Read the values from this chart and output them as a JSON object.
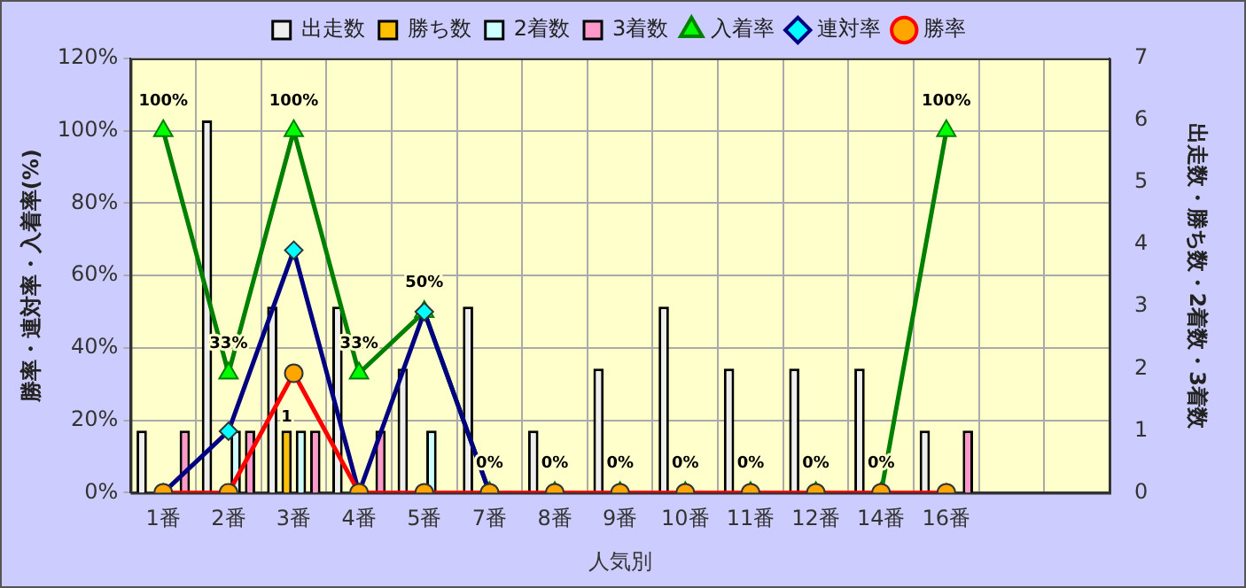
{
  "chart_data": {
    "type": "bar",
    "xlabel": "人気別",
    "ylabel": "勝率・連対率・入着率(%)",
    "y2label": "出走数・勝ち数・2着数・3着数",
    "categories": [
      "1番",
      "2番",
      "3番",
      "4番",
      "5番",
      "7番",
      "8番",
      "9番",
      "10番",
      "11番",
      "12番",
      "14番",
      "16番",
      null,
      null
    ],
    "series": [
      {
        "name": "出走数",
        "axis": "y2",
        "color": "#eeeeee",
        "values": [
          1,
          6,
          3,
          3,
          2,
          3,
          1,
          2,
          3,
          2,
          2,
          2,
          1,
          null,
          null
        ]
      },
      {
        "name": "勝ち数",
        "axis": "y2",
        "color": "#ffc000",
        "values": [
          0,
          0,
          1,
          0,
          0,
          0,
          0,
          0,
          0,
          0,
          0,
          0,
          0,
          null,
          null
        ],
        "value_labels": [
          null,
          null,
          "1",
          null,
          null,
          null,
          null,
          null,
          null,
          null,
          null,
          null,
          null,
          null,
          null
        ]
      },
      {
        "name": "2着数",
        "axis": "y2",
        "color": "#ccffff",
        "values": [
          0,
          1,
          1,
          0,
          1,
          0,
          0,
          0,
          0,
          0,
          0,
          0,
          0,
          null,
          null
        ]
      },
      {
        "name": "3着数",
        "axis": "y2",
        "color": "#ff99cc",
        "values": [
          1,
          1,
          1,
          1,
          0,
          0,
          0,
          0,
          0,
          0,
          0,
          0,
          1,
          null,
          null
        ]
      },
      {
        "name": "入着率",
        "type": "line",
        "marker": "triangle",
        "color": "#008000",
        "values": [
          100,
          33,
          100,
          33,
          50,
          0,
          0,
          0,
          0,
          0,
          0,
          0,
          100,
          null,
          null
        ],
        "value_labels": [
          "100%",
          "33%",
          "100%",
          "33%",
          "50%",
          "0%",
          "0%",
          "0%",
          "0%",
          "0%",
          "0%",
          "0%",
          "100%",
          null,
          null
        ]
      },
      {
        "name": "連対率",
        "type": "line",
        "marker": "diamond",
        "color": "#000080",
        "values": [
          0,
          17,
          67,
          0,
          50,
          0,
          0,
          0,
          0,
          0,
          0,
          0,
          0,
          null,
          null
        ]
      },
      {
        "name": "勝率",
        "type": "line",
        "marker": "circle",
        "color": "#ff0000",
        "values": [
          0,
          0,
          33,
          0,
          0,
          0,
          0,
          0,
          0,
          0,
          0,
          0,
          0,
          null,
          null
        ]
      }
    ],
    "ylim": [
      0,
      120
    ],
    "yticks": [
      {
        "value": 0,
        "label": "0%"
      },
      {
        "value": 20,
        "label": "20%"
      },
      {
        "value": 40,
        "label": "40%"
      },
      {
        "value": 60,
        "label": "60%"
      },
      {
        "value": 80,
        "label": "80%"
      },
      {
        "value": 100,
        "label": "100%"
      },
      {
        "value": 120,
        "label": "120%"
      }
    ],
    "y2lim": [
      0,
      7
    ],
    "y2ticks": [
      0,
      1,
      2,
      3,
      4,
      5,
      6,
      7
    ],
    "grid": true,
    "legend": "top",
    "line_style": "solid"
  }
}
